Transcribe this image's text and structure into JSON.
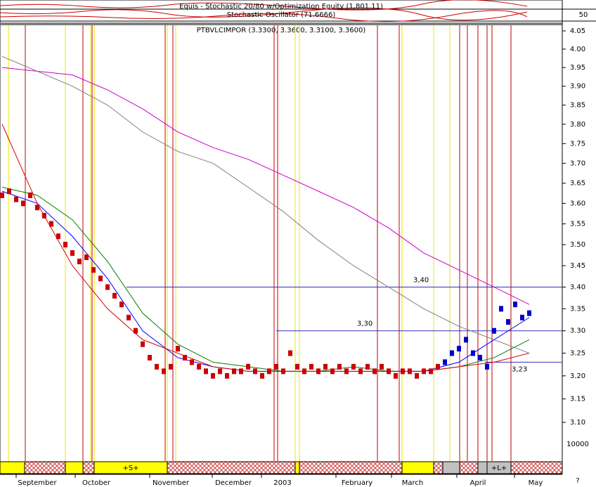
{
  "chart_data": {
    "type": "price",
    "indicator_title": "Equis - Stochastic 20/80  w/Optimization Equity (1,801.11)",
    "oscillator_title": "Stochastic Oscillator (71.6666)",
    "oscillator_ticks": [
      50
    ],
    "title": "PTBVLCIMPOR (3.3300, 3.3600, 3.3100, 3.3600)",
    "log_scale": true,
    "ylim": [
      3.1,
      4.05
    ],
    "yticks": [
      4.05,
      {
        "value": 4,
        "label": "4.00"
      },
      3.95,
      {
        "value": 3.9,
        "label": "3.90"
      },
      3.85,
      {
        "value": 3.8,
        "label": "3.80"
      },
      3.75,
      {
        "value": 3.7,
        "label": "3.70"
      },
      3.65,
      {
        "value": 3.6,
        "label": "3.60"
      },
      3.55,
      {
        "value": 3.5,
        "label": "3.50"
      },
      3.45,
      {
        "value": 3.4,
        "label": "3.40"
      },
      3.35,
      {
        "value": 3.3,
        "label": "3.30"
      },
      3.25,
      {
        "value": 3.2,
        "label": "3.20"
      },
      3.15,
      {
        "value": 3.1,
        "label": "3.10"
      }
    ],
    "volume_ticks": [
      10000
    ],
    "values": [
      3.62,
      3.63,
      3.61,
      3.6,
      3.62,
      3.59,
      3.57,
      3.55,
      3.52,
      3.5,
      3.48,
      3.46,
      3.47,
      3.44,
      3.42,
      3.4,
      3.38,
      3.36,
      3.33,
      3.3,
      3.27,
      3.24,
      3.22,
      3.21,
      3.22,
      3.26,
      3.24,
      3.23,
      3.22,
      3.21,
      3.2,
      3.21,
      3.2,
      3.21,
      3.21,
      3.22,
      3.21,
      3.2,
      3.21,
      3.22,
      3.21,
      3.25,
      3.22,
      3.21,
      3.22,
      3.21,
      3.22,
      3.21,
      3.22,
      3.21,
      3.22,
      3.21,
      3.22,
      3.21,
      3.22,
      3.21,
      3.2,
      3.21,
      3.21,
      3.2,
      3.21,
      3.21,
      3.22,
      3.23,
      3.25,
      3.26,
      3.28,
      3.25,
      3.24,
      3.22,
      3.3,
      3.35,
      3.32,
      3.36,
      3.33,
      3.34
    ],
    "colors": [
      "#cc0000",
      "#0000cc"
    ],
    "overlays": [
      {
        "color": "#0000ff",
        "values": [
          3.63,
          3.6,
          3.52,
          3.42,
          3.3,
          3.24,
          3.22,
          3.21,
          3.21,
          3.21,
          3.21,
          3.21,
          3.21,
          3.23,
          3.28,
          3.33
        ]
      },
      {
        "color": "#008000",
        "values": [
          3.64,
          3.62,
          3.56,
          3.46,
          3.34,
          3.27,
          3.23,
          3.22,
          3.21,
          3.21,
          3.22,
          3.21,
          3.21,
          3.22,
          3.24,
          3.28
        ]
      },
      {
        "color": "#dd0000",
        "values": [
          3.8,
          3.6,
          3.45,
          3.35,
          3.28,
          3.25,
          3.22,
          3.21,
          3.21,
          3.21,
          3.21,
          3.21,
          3.21,
          3.22,
          3.23,
          3.25
        ]
      },
      {
        "color": "#cc00cc",
        "values": [
          3.95,
          3.94,
          3.93,
          3.89,
          3.84,
          3.78,
          3.74,
          3.71,
          3.67,
          3.63,
          3.59,
          3.54,
          3.48,
          3.44,
          3.4,
          3.36
        ]
      },
      {
        "color": "#808080",
        "values": [
          3.98,
          3.94,
          3.9,
          3.85,
          3.78,
          3.73,
          3.7,
          3.64,
          3.58,
          3.51,
          3.45,
          3.4,
          3.35,
          3.31,
          3.28,
          3.25
        ]
      }
    ],
    "levels": [
      {
        "value": 3.4,
        "label": "3,40"
      },
      {
        "value": 3.3,
        "label": "3,30"
      },
      {
        "value": 3.23,
        "label": "3,23"
      }
    ],
    "signals": [
      "+S+",
      "+L+"
    ],
    "x_labels": [
      "September",
      "October",
      "November",
      "December",
      "2003",
      "February",
      "March",
      "April",
      "May"
    ],
    "corner": "?"
  }
}
